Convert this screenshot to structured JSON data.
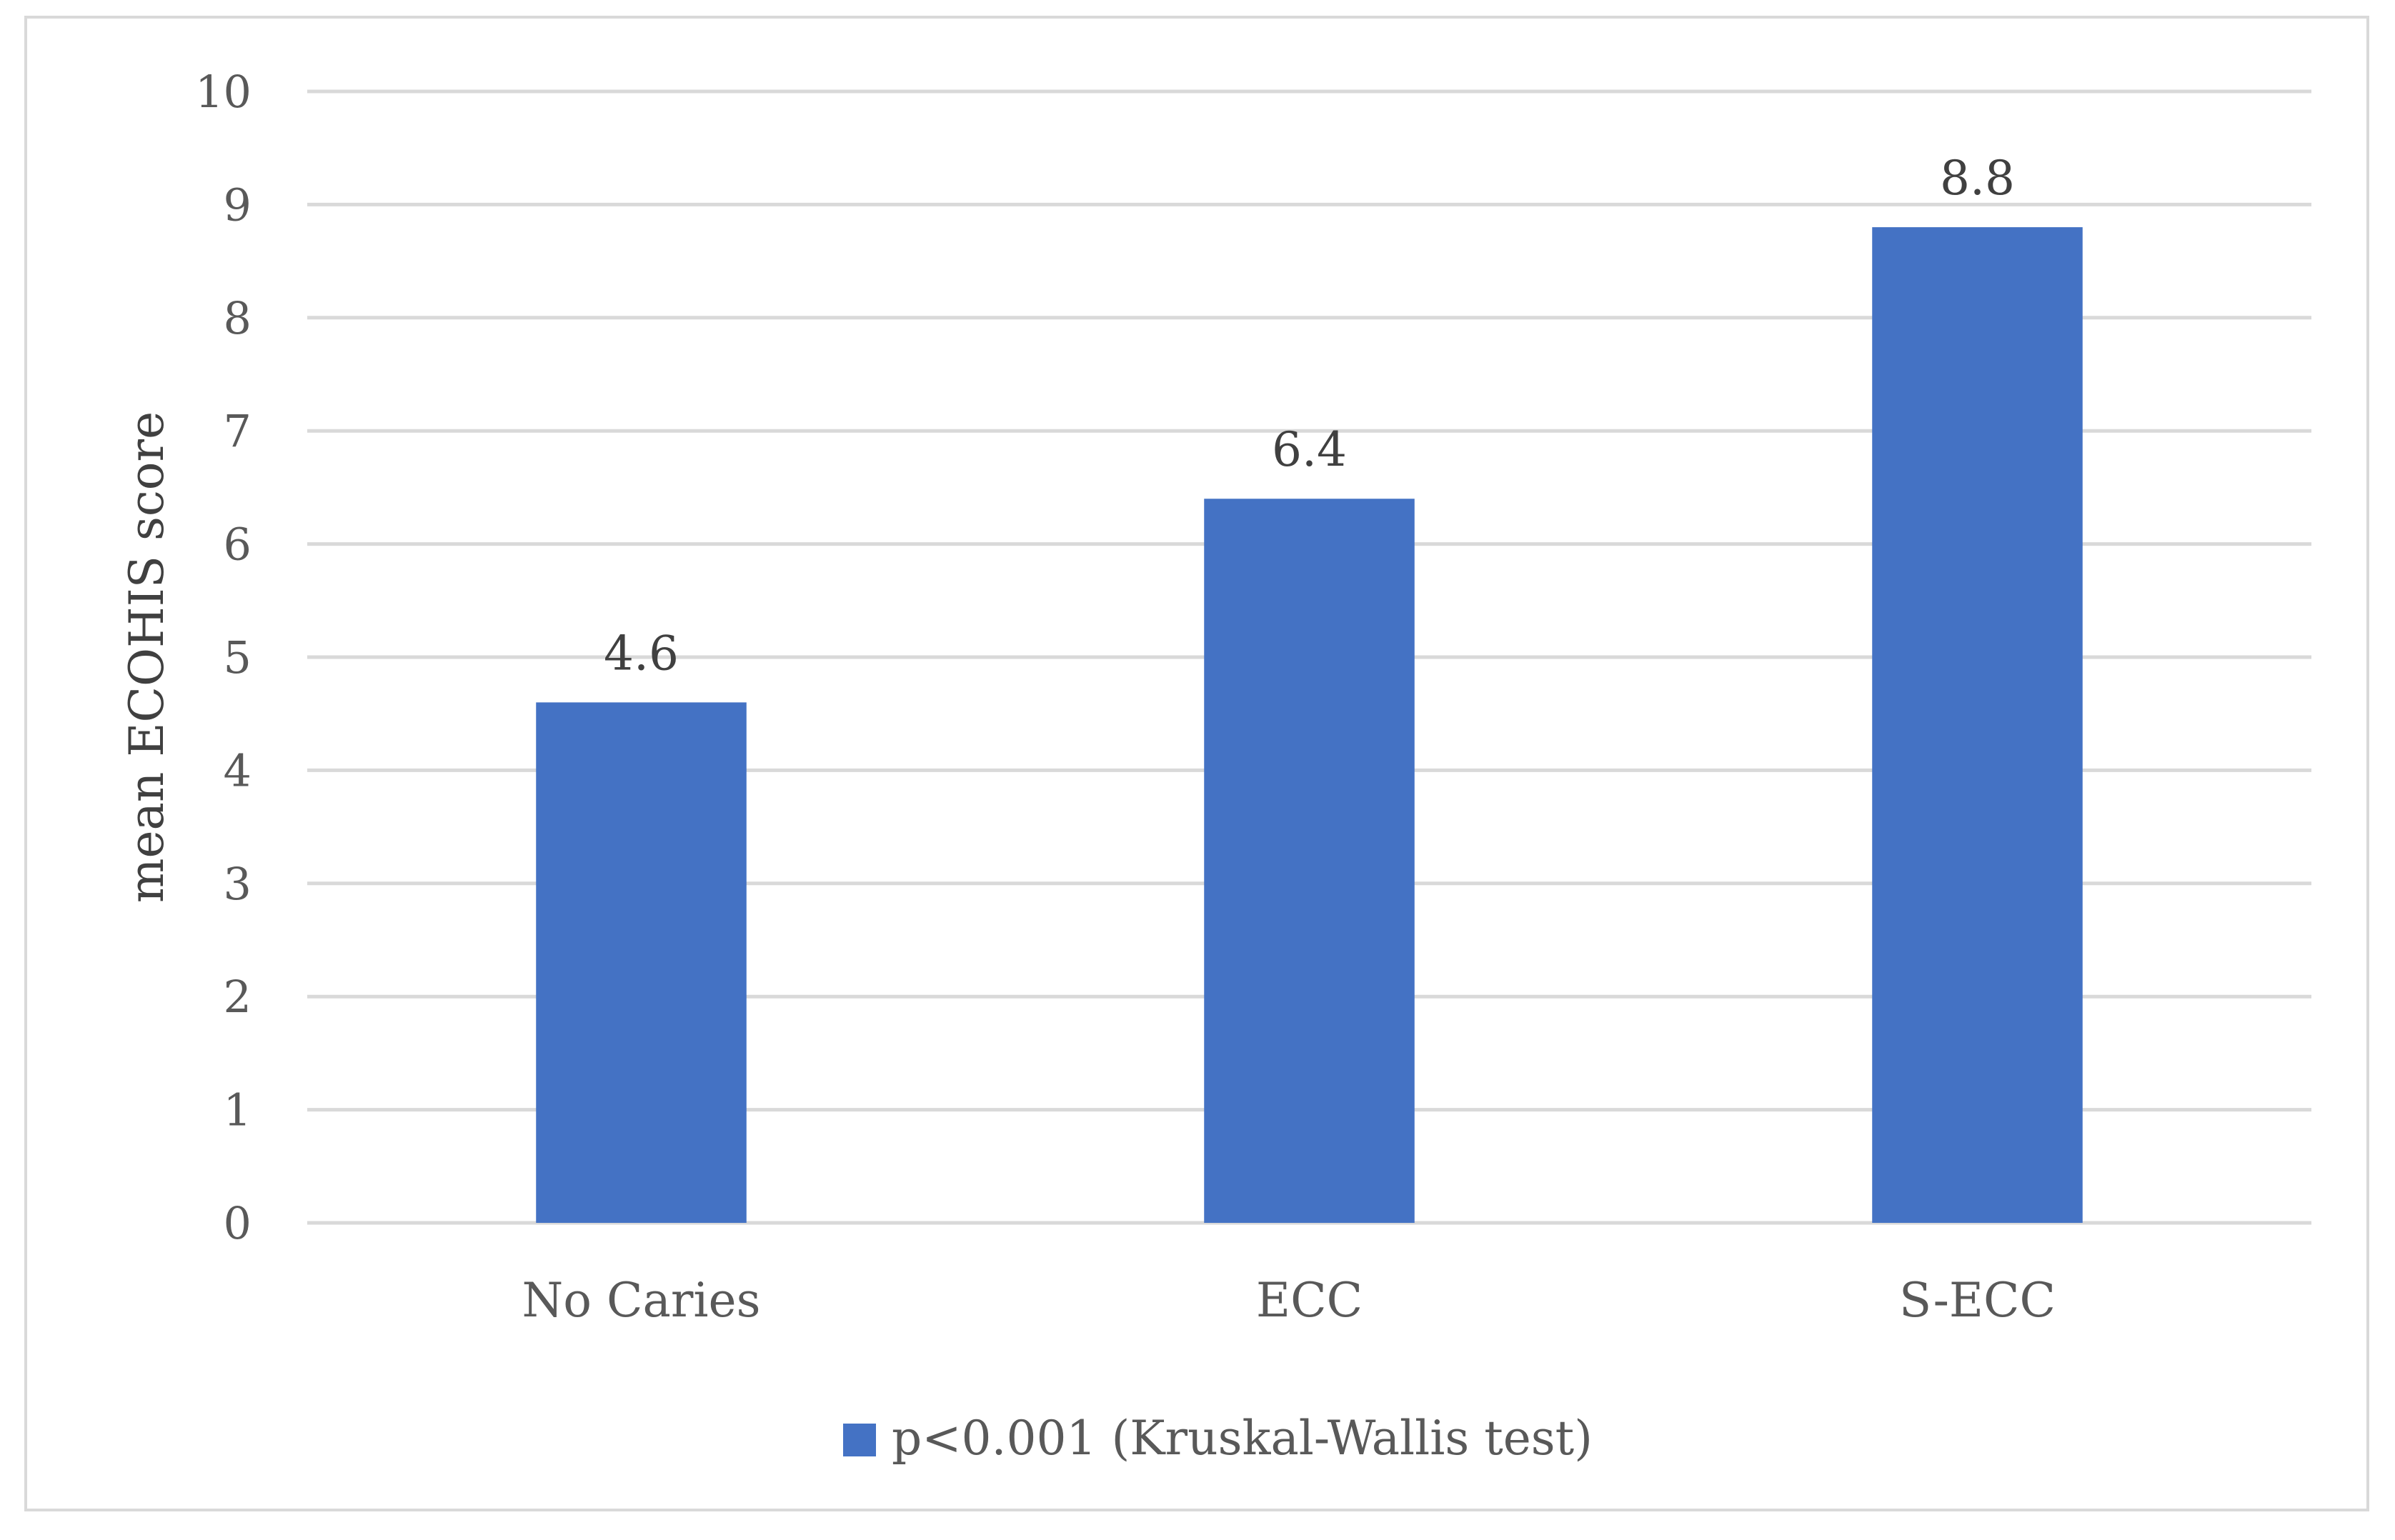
{
  "chart_data": {
    "type": "bar",
    "categories": [
      "No Caries",
      "ECC",
      "S-ECC"
    ],
    "series": [
      {
        "name": "p<0.001 (Kruskal-Wallis test)",
        "values": [
          4.6,
          6.4,
          8.8
        ],
        "color": "#4472c4"
      }
    ],
    "data_labels": [
      "4.6",
      "6.4",
      "8.8"
    ],
    "title": "",
    "xlabel": "",
    "ylabel": "mean ECOHIS score",
    "ylim": [
      0,
      10
    ],
    "yticks": [
      0,
      1,
      2,
      3,
      4,
      5,
      6,
      7,
      8,
      9,
      10
    ],
    "ytick_labels": [
      "0",
      "1",
      "2",
      "3",
      "4",
      "5",
      "6",
      "7",
      "8",
      "9",
      "10"
    ],
    "grid": true,
    "gridline_color": "#d9d9d9",
    "legend_position": "bottom"
  }
}
